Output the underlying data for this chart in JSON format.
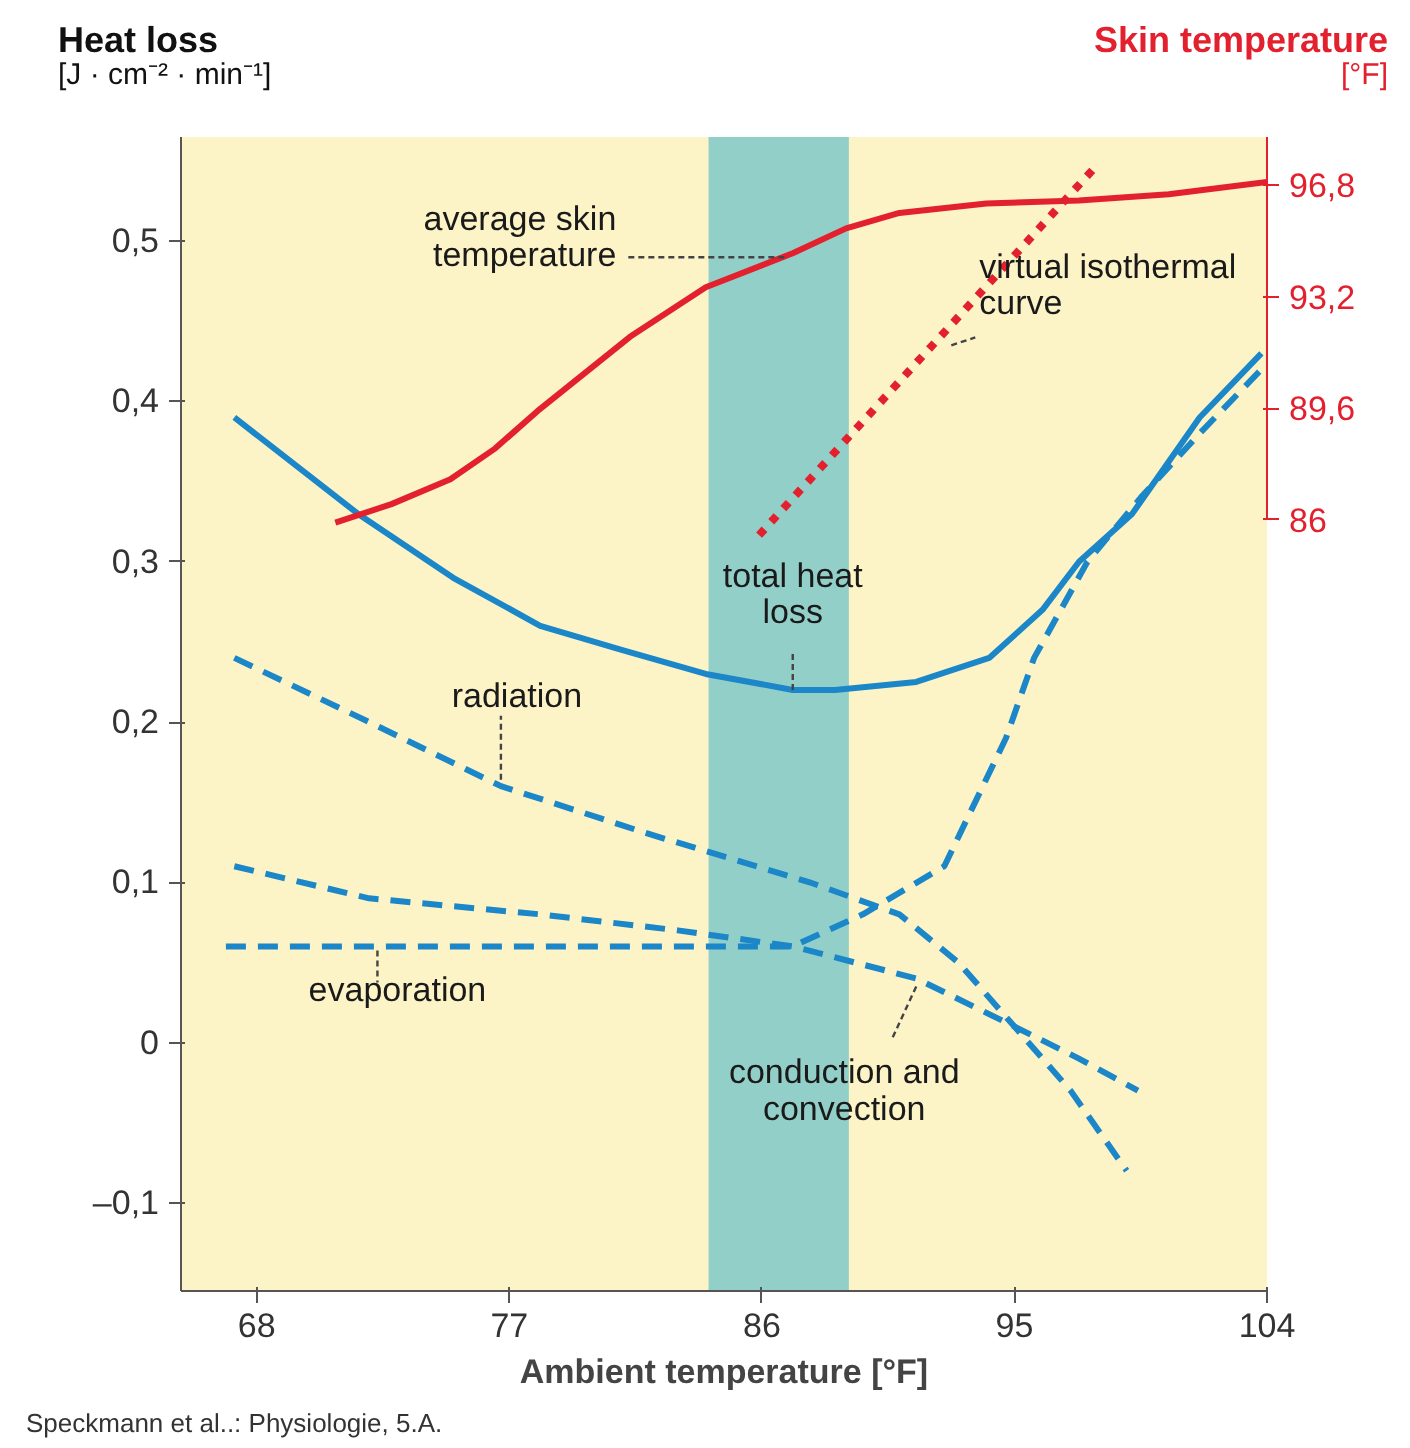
{
  "chart_data": {
    "type": "line",
    "ylabel": "Heat loss\n[J · cm⁻² · min⁻¹]",
    "y2label": "Skin temperature\n[°F]",
    "xlabel": "Ambient temperature [°F]",
    "xlim": [
      65.3,
      104
    ],
    "xticks": [
      68,
      77,
      86,
      95,
      104
    ],
    "ylim": [
      -0.155,
      0.565
    ],
    "yticks": [
      {
        "value": -0.1,
        "label": "–0,1"
      },
      0,
      {
        "value": 0.1,
        "label": "0,1"
      },
      {
        "value": 0.2,
        "label": "0,2"
      },
      {
        "value": 0.3,
        "label": "0,3"
      },
      {
        "value": 0.4,
        "label": "0,4"
      },
      {
        "value": 0.5,
        "label": "0,5"
      }
    ],
    "y2lim": [
      61.1,
      98.35
    ],
    "y2ticks": [
      86,
      {
        "value": 89.6,
        "label": "89,6"
      },
      {
        "value": 93.2,
        "label": "93,2"
      },
      {
        "value": 96.8,
        "label": "96,8"
      }
    ],
    "grid": false,
    "marker": "none",
    "bands": [
      {
        "axis": "x",
        "from": 84.1,
        "to": 89.1,
        "color": "#93cfc9"
      }
    ],
    "series": [
      {
        "color": "#1b86c8",
        "line_style": "solid",
        "x": [
          67.2,
          71.6,
          75.0,
          78.1,
          81.0,
          84.0,
          87.1,
          88.6,
          91.5,
          94.1,
          96.0,
          97.3,
          99.2,
          101.6,
          103.8
        ],
        "values": [
          0.39,
          0.33,
          0.29,
          0.26,
          0.245,
          0.23,
          0.22,
          0.22,
          0.225,
          0.24,
          0.27,
          0.3,
          0.33,
          0.39,
          0.43
        ]
      },
      {
        "color": "#1b86c8",
        "line_style": "dashed",
        "x": [
          67.2,
          72.0,
          76.7,
          82.0,
          87.7,
          90.9,
          93.0,
          95.0,
          97.0,
          99.0
        ],
        "values": [
          0.24,
          0.2,
          0.16,
          0.13,
          0.1,
          0.08,
          0.05,
          0.01,
          -0.03,
          -0.08
        ]
      },
      {
        "color": "#1b86c8",
        "line_style": "dashed",
        "x": [
          67.2,
          72.0,
          78.1,
          83.0,
          87.1,
          91.5,
          95.0,
          97.3,
          99.4
        ],
        "values": [
          0.11,
          0.09,
          0.08,
          0.07,
          0.06,
          0.04,
          0.01,
          -0.01,
          -0.03
        ]
      },
      {
        "color": "#1b86c8",
        "line_style": "dashed",
        "x": [
          66.9,
          72.3,
          80.0,
          87.1,
          89.6,
          92.5,
          94.7,
          95.7,
          97.6,
          99.5,
          101.6,
          103.8
        ],
        "values": [
          0.06,
          0.06,
          0.06,
          0.06,
          0.08,
          0.11,
          0.19,
          0.24,
          0.3,
          0.34,
          0.38,
          0.42
        ]
      },
      {
        "color": "#e3202e",
        "line_style": "solid",
        "axis": "y2",
        "x": [
          70.8,
          72.8,
          74.9,
          76.5,
          78.0,
          81.3,
          84.0,
          87.1,
          89.0,
          90.9,
          94.0,
          97.3,
          100.5,
          104.0
        ],
        "values": [
          85.9,
          86.5,
          87.3,
          88.3,
          89.5,
          91.9,
          93.5,
          94.6,
          95.4,
          95.9,
          96.2,
          96.3,
          96.5,
          96.9
        ]
      },
      {
        "color": "#e3202e",
        "line_style": "dotted",
        "axis": "y2",
        "x": [
          85.9,
          97.9
        ],
        "values": [
          85.5,
          97.4
        ]
      }
    ],
    "annotations": [
      {
        "text": "average skin temperature",
        "x": 86.8,
        "y": 0.49
      },
      {
        "text": "virtual isothermal curve",
        "x": 92.75,
        "y": 0.435
      },
      {
        "text": "total heat loss",
        "x": 87.1,
        "y": 0.22
      },
      {
        "text": "radiation",
        "x": 76.7,
        "y": 0.164
      },
      {
        "text": "evaporation",
        "x": 72.3,
        "y": 0.0575
      },
      {
        "text": "conduction and convection",
        "x": 91.5,
        "y": 0.035
      },
      "Speckmann et al..: Physiologie, 5.A."
    ]
  }
}
